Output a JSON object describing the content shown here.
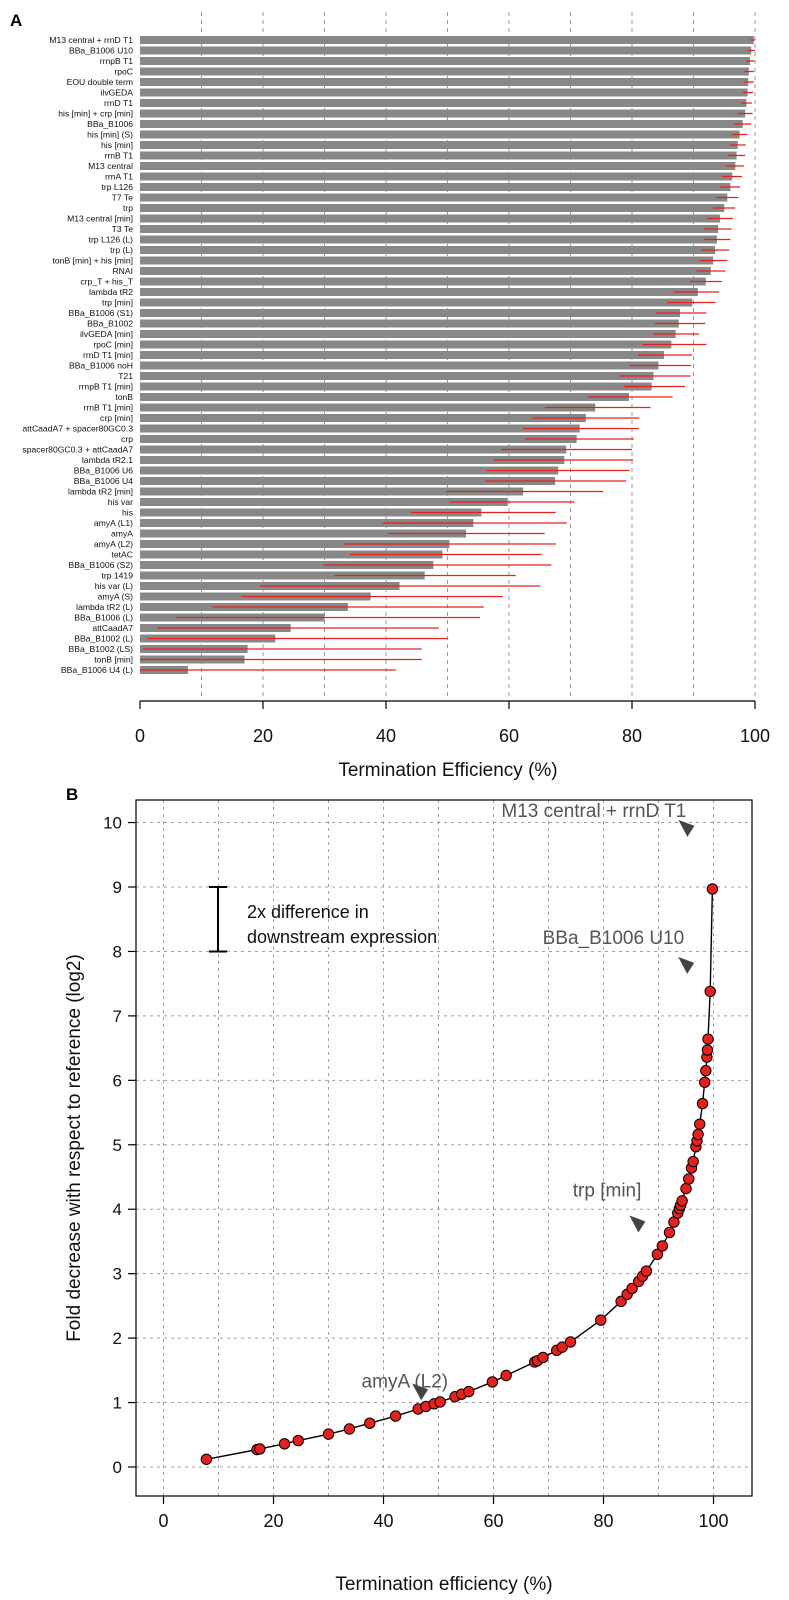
{
  "chart_data": [
    {
      "panel_label": "A",
      "type": "bar",
      "orientation": "horizontal",
      "xlabel": "Termination Efficiency (%)",
      "xlim": [
        0,
        100
      ],
      "xticks": [
        0,
        20,
        40,
        60,
        80,
        100
      ],
      "grid": "vertical dashed at every 10",
      "bar_color": "#888888",
      "error_color": "#e8201c",
      "categories": [
        "M13 central + rrnD T1",
        "BBa_B1006 U10",
        "rrnpB T1",
        "rpoC",
        "EOU double term",
        "ilvGEDA",
        "rrnD T1",
        "his [min] + crp [min]",
        "BBa_B1006",
        "his [min] (S)",
        "his [min]",
        "rrnB T1",
        "M13 central",
        "rrnA T1",
        "trp L126",
        "T7 Te",
        "trp",
        "M13 central [min]",
        "T3 Te",
        "trp L126 (L)",
        "trp (L)",
        "tonB [min] + his [min]",
        "RNAI",
        "crp_T + his_T",
        "lambda tR2",
        "trp [min]",
        "BBa_B1006 (S1)",
        "BBa_B1002",
        "ilvGEDA [min]",
        "rpoC [min]",
        "rrnD T1 [min]",
        "BBa_B1006 noH",
        "T21",
        "rrnpB T1 [min]",
        "tonB",
        "rrnB T1 [min]",
        "crp [min]",
        "attCaadA7 + spacer80GC0.3",
        "crp",
        "spacer80GC0.3 + attCaadA7",
        "lambda tR2.1",
        "BBa_B1006 U6",
        "BBa_B1006 U4",
        "lambda tR2 [min]",
        "his var",
        "his",
        "amyA (L1)",
        "amyA",
        "amyA (L2)",
        "tetAC",
        "BBa_B1006 (S2)",
        "trp 1419",
        "his var (L)",
        "amyA (S)",
        "lambda tR2 (L)",
        "BBa_B1006 (L)",
        "attCaadA7",
        "BBa_B1002 (L)",
        "BBa_B1002 (LS)",
        "tonB [min]",
        "BBa_B1006 U4 (L)"
      ],
      "values": [
        99.8,
        99.4,
        99.2,
        99.0,
        98.9,
        98.8,
        98.6,
        98.4,
        98.0,
        97.5,
        97.2,
        97.0,
        96.8,
        96.3,
        96.0,
        95.5,
        95.0,
        94.3,
        94.0,
        93.8,
        93.5,
        93.2,
        92.8,
        92.0,
        90.7,
        89.8,
        87.8,
        87.6,
        87.1,
        86.4,
        85.2,
        84.3,
        83.5,
        83.2,
        79.5,
        74.0,
        72.5,
        71.5,
        71.0,
        69.3,
        69.0,
        68.0,
        67.5,
        62.3,
        59.8,
        55.5,
        54.2,
        53.0,
        50.3,
        49.2,
        47.7,
        46.3,
        42.2,
        37.5,
        33.8,
        30.0,
        24.5,
        22.0,
        17.5,
        17.0,
        7.8
      ],
      "errors": [
        [
          99.3,
          100.0
        ],
        [
          98.9,
          100.0
        ],
        [
          98.6,
          99.9
        ],
        [
          98.3,
          99.8
        ],
        [
          98.2,
          99.8
        ],
        [
          98.0,
          99.7
        ],
        [
          97.7,
          99.5
        ],
        [
          97.2,
          99.6
        ],
        [
          96.6,
          99.4
        ],
        [
          96.2,
          98.8
        ],
        [
          95.9,
          98.5
        ],
        [
          95.6,
          98.4
        ],
        [
          95.3,
          98.2
        ],
        [
          94.6,
          97.9
        ],
        [
          94.4,
          97.6
        ],
        [
          93.7,
          97.3
        ],
        [
          93.2,
          96.8
        ],
        [
          92.2,
          96.4
        ],
        [
          91.8,
          96.2
        ],
        [
          91.7,
          96.0
        ],
        [
          91.3,
          95.8
        ],
        [
          91.0,
          95.5
        ],
        [
          90.5,
          95.2
        ],
        [
          89.4,
          94.6
        ],
        [
          86.8,
          94.2
        ],
        [
          85.7,
          93.6
        ],
        [
          83.9,
          92.1
        ],
        [
          83.7,
          91.9
        ],
        [
          83.5,
          90.9
        ],
        [
          81.7,
          92.1
        ],
        [
          81.0,
          89.8
        ],
        [
          79.6,
          89.6
        ],
        [
          78.0,
          89.5
        ],
        [
          78.7,
          88.6
        ],
        [
          72.8,
          86.6
        ],
        [
          65.8,
          83.0
        ],
        [
          63.8,
          81.2
        ],
        [
          62.3,
          81.1
        ],
        [
          62.6,
          80.3
        ],
        [
          58.7,
          80.0
        ],
        [
          57.5,
          80.2
        ],
        [
          56.3,
          79.6
        ],
        [
          56.1,
          79.1
        ],
        [
          49.8,
          75.3
        ],
        [
          50.3,
          70.6
        ],
        [
          44.1,
          67.6
        ],
        [
          39.5,
          69.4
        ],
        [
          40.4,
          65.8
        ],
        [
          33.2,
          67.6
        ],
        [
          34.2,
          65.3
        ],
        [
          29.8,
          66.9
        ],
        [
          31.7,
          61.1
        ],
        [
          19.5,
          65.1
        ],
        [
          16.5,
          59.0
        ],
        [
          11.8,
          55.9
        ],
        [
          5.8,
          55.3
        ],
        [
          2.8,
          48.6
        ],
        [
          1.2,
          50.0
        ],
        [
          0.5,
          45.8
        ],
        [
          0.0,
          45.8
        ],
        [
          0.0,
          41.6
        ]
      ]
    },
    {
      "panel_label": "B",
      "type": "line",
      "xlabel": "Termination efficiency (%)",
      "ylabel": "Fold decrease with respect to reference (log2)",
      "xlim": [
        -5,
        107
      ],
      "ylim": [
        -0.45,
        10.35
      ],
      "xticks": [
        0,
        20,
        40,
        60,
        80,
        100
      ],
      "yticks": [
        0,
        1,
        2,
        3,
        4,
        5,
        6,
        7,
        8,
        9,
        10
      ],
      "grid": true,
      "marker_color": "#e8201c",
      "line_color": "#000000",
      "x": [
        7.8,
        17.0,
        17.5,
        22.0,
        24.5,
        30.0,
        33.8,
        37.5,
        42.2,
        46.3,
        47.7,
        49.2,
        50.3,
        53.0,
        54.2,
        55.5,
        59.8,
        62.3,
        67.5,
        68.0,
        69.0,
        71.5,
        72.5,
        74.0,
        79.5,
        83.2,
        84.3,
        85.2,
        86.4,
        87.1,
        87.8,
        89.8,
        90.7,
        92.0,
        92.8,
        93.5,
        93.8,
        94.0,
        94.3,
        95.0,
        95.5,
        96.0,
        96.3,
        96.8,
        97.0,
        97.2,
        97.5,
        98.0,
        98.4,
        98.6,
        98.8,
        98.9,
        99.0,
        99.4,
        99.8
      ],
      "y": [
        0.12,
        0.27,
        0.28,
        0.36,
        0.41,
        0.51,
        0.59,
        0.68,
        0.79,
        0.9,
        0.94,
        0.98,
        1.01,
        1.09,
        1.13,
        1.17,
        1.32,
        1.42,
        1.63,
        1.65,
        1.7,
        1.81,
        1.86,
        1.94,
        2.28,
        2.57,
        2.68,
        2.77,
        2.88,
        2.96,
        3.04,
        3.3,
        3.43,
        3.64,
        3.8,
        3.94,
        4.01,
        4.06,
        4.13,
        4.32,
        4.47,
        4.64,
        4.74,
        4.97,
        5.06,
        5.16,
        5.32,
        5.64,
        5.97,
        6.15,
        6.36,
        6.47,
        6.64,
        7.38,
        8.97
      ],
      "annotations": [
        {
          "text": "M13 central + rrnD T1",
          "x": 99.8,
          "y": 9.7
        },
        {
          "text": "BBa_B1006 U10",
          "x": 99.4,
          "y": 7.45
        },
        {
          "text": "trp [min]",
          "x": 89.8,
          "y": 3.5
        },
        {
          "text": "amyA (L2)",
          "x": 50.3,
          "y": 1.05
        }
      ],
      "scale_bar": {
        "from": 8,
        "to": 9,
        "label_line1": "2x difference in",
        "label_line2": "downstream expression"
      }
    }
  ]
}
